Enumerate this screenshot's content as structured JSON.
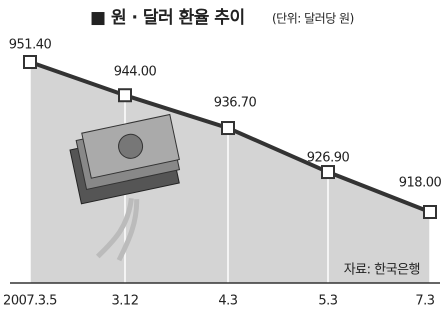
{
  "chart_data": {
    "type": "area-line",
    "title": "■ 원 · 달러 환율 추이",
    "subtitle": "(단위: 달러당 원)",
    "source": "자료: 한국은행",
    "categories": [
      "2007.3.5",
      "3.12",
      "4.3",
      "5.3",
      "7.3"
    ],
    "values": [
      951.4,
      944.0,
      936.7,
      926.9,
      918.0
    ],
    "value_labels": [
      "951.40",
      "944.00",
      "936.70",
      "926.90",
      "918.00"
    ],
    "color": "#333333",
    "fill": "#d4d4d4"
  }
}
